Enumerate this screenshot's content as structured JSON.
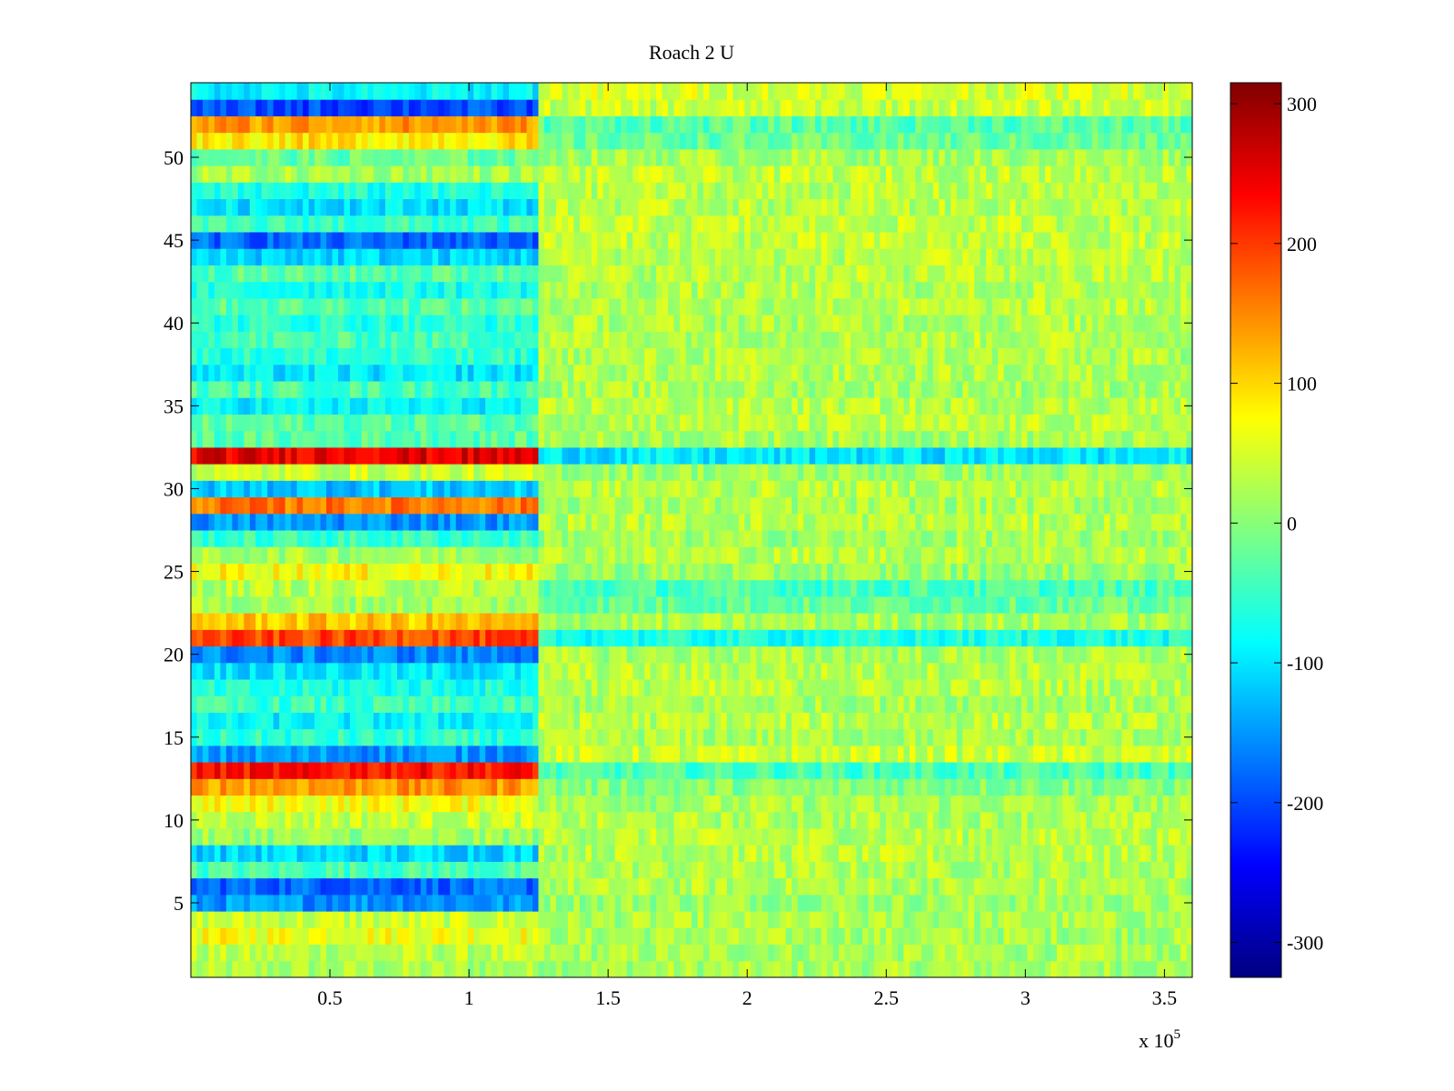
{
  "chart_data": {
    "type": "heatmap",
    "title": "Roach 2 U",
    "xlabel": "",
    "ylabel": "",
    "x_exponent_label": "x 10",
    "x_exponent_power": "5",
    "xlim": [
      0,
      3.6
    ],
    "ylim": [
      0.5,
      54.5
    ],
    "rows": 54,
    "x_ticks": [
      {
        "value": 0.5,
        "label": "0.5"
      },
      {
        "value": 1,
        "label": "1"
      },
      {
        "value": 1.5,
        "label": "1.5"
      },
      {
        "value": 2,
        "label": "2"
      },
      {
        "value": 2.5,
        "label": "2.5"
      },
      {
        "value": 3,
        "label": "3"
      },
      {
        "value": 3.5,
        "label": "3.5"
      }
    ],
    "y_ticks": [
      {
        "value": 5,
        "label": "5"
      },
      {
        "value": 10,
        "label": "10"
      },
      {
        "value": 15,
        "label": "15"
      },
      {
        "value": 20,
        "label": "20"
      },
      {
        "value": 25,
        "label": "25"
      },
      {
        "value": 30,
        "label": "30"
      },
      {
        "value": 35,
        "label": "35"
      },
      {
        "value": 40,
        "label": "40"
      },
      {
        "value": 45,
        "label": "45"
      },
      {
        "value": 50,
        "label": "50"
      }
    ],
    "colorbar": {
      "colormap": "jet",
      "range": [
        -325,
        315
      ],
      "ticks": [
        {
          "value": 300,
          "label": "300"
        },
        {
          "value": 200,
          "label": "200"
        },
        {
          "value": 100,
          "label": "100"
        },
        {
          "value": 0,
          "label": "0"
        },
        {
          "value": -100,
          "label": "-100"
        },
        {
          "value": -200,
          "label": "-200"
        },
        {
          "value": -300,
          "label": "-300"
        }
      ]
    },
    "segment_boundaries": [
      1.23,
      3.6
    ],
    "row_means": [
      {
        "row": 1,
        "first": 20,
        "rest": 20
      },
      {
        "row": 2,
        "first": 30,
        "rest": 20
      },
      {
        "row": 3,
        "first": 70,
        "rest": 20
      },
      {
        "row": 4,
        "first": 40,
        "rest": 20
      },
      {
        "row": 5,
        "first": -150,
        "rest": 15
      },
      {
        "row": 6,
        "first": -180,
        "rest": 25
      },
      {
        "row": 7,
        "first": -40,
        "rest": 25
      },
      {
        "row": 8,
        "first": -110,
        "rest": 30
      },
      {
        "row": 9,
        "first": 10,
        "rest": 30
      },
      {
        "row": 10,
        "first": 40,
        "rest": 25
      },
      {
        "row": 11,
        "first": 70,
        "rest": 20
      },
      {
        "row": 12,
        "first": 140,
        "rest": 0
      },
      {
        "row": 13,
        "first": 225,
        "rest": -40
      },
      {
        "row": 14,
        "first": -150,
        "rest": 40
      },
      {
        "row": 15,
        "first": -60,
        "rest": 20
      },
      {
        "row": 16,
        "first": -90,
        "rest": 30
      },
      {
        "row": 17,
        "first": -50,
        "rest": 20
      },
      {
        "row": 18,
        "first": -70,
        "rest": 30
      },
      {
        "row": 19,
        "first": -100,
        "rest": 30
      },
      {
        "row": 20,
        "first": -160,
        "rest": 20
      },
      {
        "row": 21,
        "first": 190,
        "rest": -70
      },
      {
        "row": 22,
        "first": 110,
        "rest": 20
      },
      {
        "row": 23,
        "first": 20,
        "rest": -20
      },
      {
        "row": 24,
        "first": 30,
        "rest": -40
      },
      {
        "row": 25,
        "first": 75,
        "rest": 10
      },
      {
        "row": 26,
        "first": 20,
        "rest": 30
      },
      {
        "row": 27,
        "first": -50,
        "rest": 15
      },
      {
        "row": 28,
        "first": -150,
        "rest": 30
      },
      {
        "row": 29,
        "first": 160,
        "rest": 20
      },
      {
        "row": 30,
        "first": -120,
        "rest": 30
      },
      {
        "row": 31,
        "first": 40,
        "rest": 15
      },
      {
        "row": 32,
        "first": 250,
        "rest": -100
      },
      {
        "row": 33,
        "first": -30,
        "rest": 20
      },
      {
        "row": 34,
        "first": -30,
        "rest": 30
      },
      {
        "row": 35,
        "first": -90,
        "rest": 30
      },
      {
        "row": 36,
        "first": -40,
        "rest": 20
      },
      {
        "row": 37,
        "first": -100,
        "rest": 25
      },
      {
        "row": 38,
        "first": -60,
        "rest": 25
      },
      {
        "row": 39,
        "first": -40,
        "rest": 30
      },
      {
        "row": 40,
        "first": -60,
        "rest": 25
      },
      {
        "row": 41,
        "first": -30,
        "rest": 30
      },
      {
        "row": 42,
        "first": -70,
        "rest": 25
      },
      {
        "row": 43,
        "first": -30,
        "rest": 30
      },
      {
        "row": 44,
        "first": -110,
        "rest": 30
      },
      {
        "row": 45,
        "first": -180,
        "rest": 35
      },
      {
        "row": 46,
        "first": -50,
        "rest": 35
      },
      {
        "row": 47,
        "first": -100,
        "rest": 30
      },
      {
        "row": 48,
        "first": -70,
        "rest": 30
      },
      {
        "row": 49,
        "first": 20,
        "rest": 35
      },
      {
        "row": 50,
        "first": -20,
        "rest": 20
      },
      {
        "row": 51,
        "first": 90,
        "rest": -20
      },
      {
        "row": 52,
        "first": 140,
        "rest": -30
      },
      {
        "row": 53,
        "first": -200,
        "rest": 40
      },
      {
        "row": 54,
        "first": -90,
        "rest": 50
      }
    ]
  }
}
